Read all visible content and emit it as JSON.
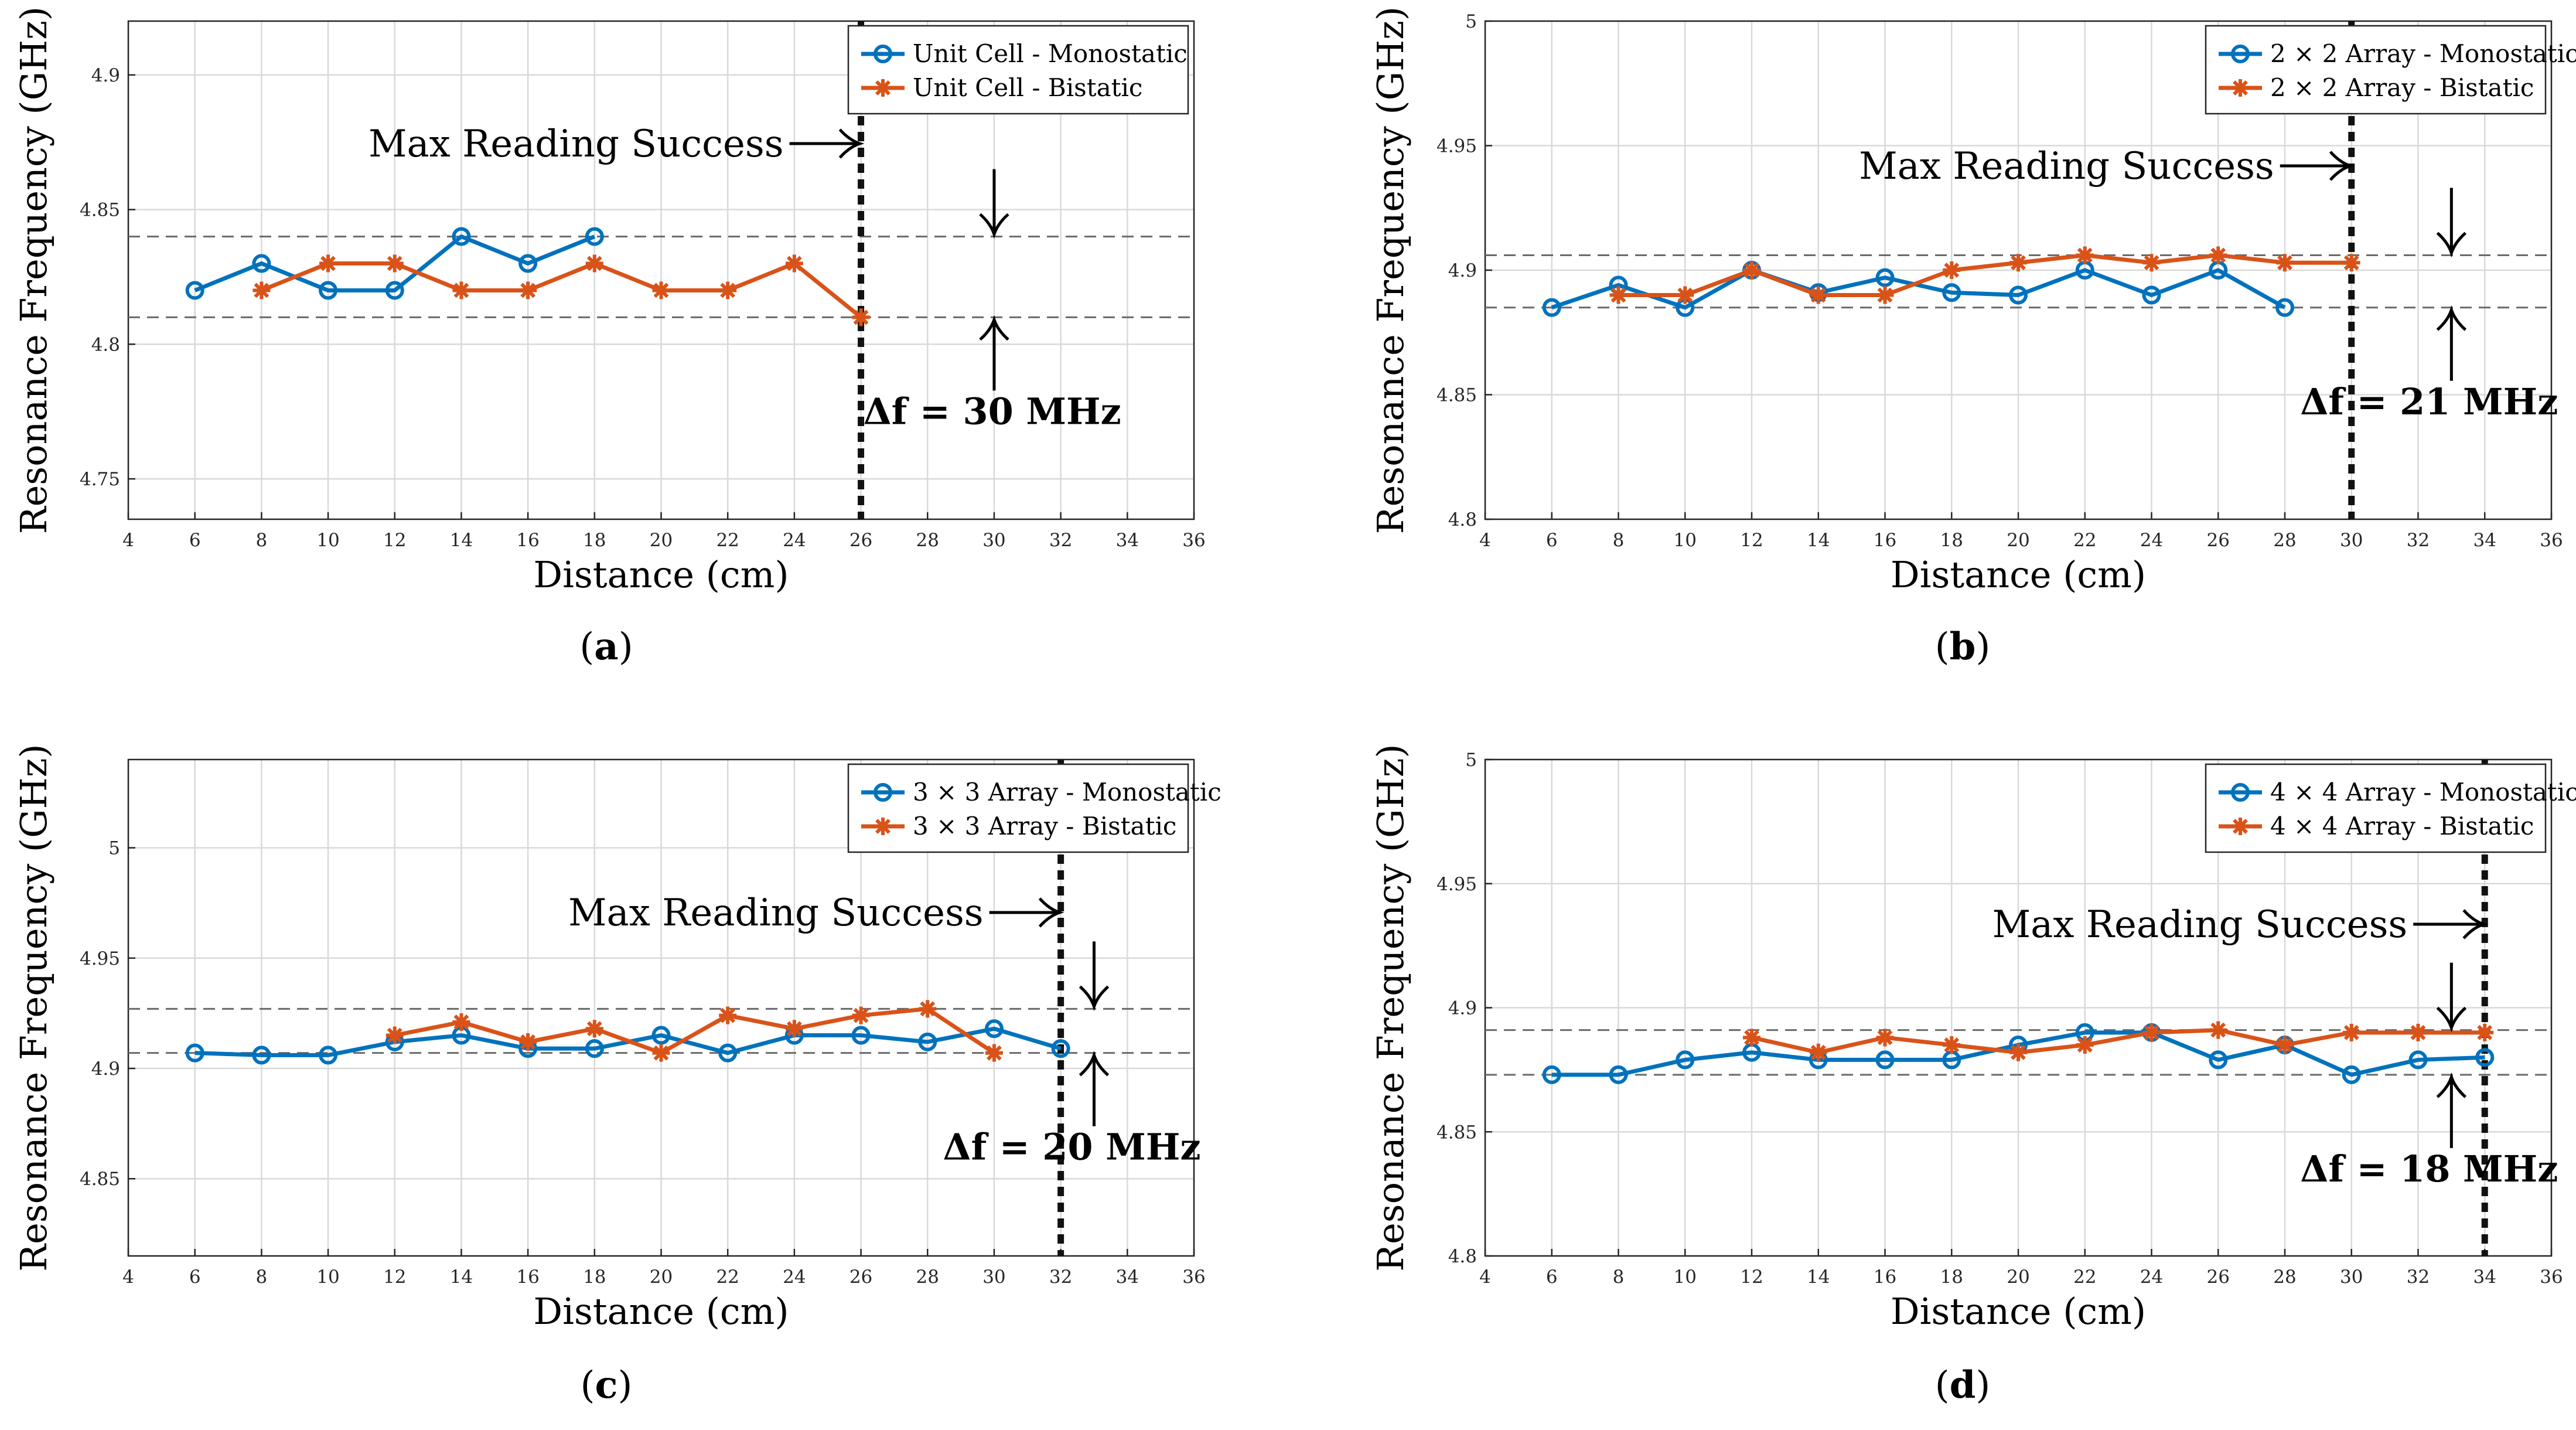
{
  "colors": {
    "monostatic": "#0072BD",
    "bistatic": "#D95319"
  },
  "chart_data": [
    {
      "id": "a",
      "type": "line",
      "caption": "a",
      "xlabel": "Distance (cm)",
      "ylabel": "Resonance Frequency (GHz)",
      "xlim": [
        4,
        36
      ],
      "ylim": [
        4.735,
        4.92
      ],
      "xticks": [
        4,
        6,
        8,
        10,
        12,
        14,
        16,
        18,
        20,
        22,
        24,
        26,
        28,
        30,
        32,
        34,
        36
      ],
      "xtick_labels": [
        "4",
        "6",
        "8",
        "10",
        "12",
        "14",
        "16",
        "18",
        "20",
        "22",
        "24",
        "26",
        "28",
        "30",
        "32",
        "34",
        "36"
      ],
      "yticks": [
        4.75,
        4.8,
        4.85,
        4.9
      ],
      "ytick_labels": [
        "4.75",
        "4.8",
        "4.85",
        "4.9"
      ],
      "grid": true,
      "legend_position": "top-right",
      "series": [
        {
          "name": "Unit Cell - Monostatic",
          "marker": "circle",
          "x": [
            6,
            8,
            10,
            12,
            14,
            16,
            18
          ],
          "y": [
            4.82,
            4.83,
            4.82,
            4.82,
            4.84,
            4.83,
            4.84
          ]
        },
        {
          "name": "Unit Cell - Bistatic",
          "marker": "star",
          "x": [
            8,
            10,
            12,
            14,
            16,
            18,
            20,
            22,
            24,
            26
          ],
          "y": [
            4.82,
            4.83,
            4.83,
            4.82,
            4.82,
            4.83,
            4.82,
            4.82,
            4.83,
            4.81
          ]
        }
      ],
      "reference_lines": [
        4.84,
        4.81
      ],
      "max_reading_x": 26,
      "max_reading_label": "Max Reading Success",
      "delta_label": "Δf = 30 MHz",
      "delta_arrow_x": 30
    },
    {
      "id": "b",
      "type": "line",
      "caption": "b",
      "xlabel": "Distance (cm)",
      "ylabel": "Resonance Frequency (GHz)",
      "xlim": [
        4,
        36
      ],
      "ylim": [
        4.8,
        5.0
      ],
      "xticks": [
        4,
        6,
        8,
        10,
        12,
        14,
        16,
        18,
        20,
        22,
        24,
        26,
        28,
        30,
        32,
        34,
        36
      ],
      "xtick_labels": [
        "4",
        "6",
        "8",
        "10",
        "12",
        "14",
        "16",
        "18",
        "20",
        "22",
        "24",
        "26",
        "28",
        "30",
        "32",
        "34",
        "36"
      ],
      "yticks": [
        4.8,
        4.85,
        4.9,
        4.95,
        5.0
      ],
      "ytick_labels": [
        "4.8",
        "4.85",
        "4.9",
        "4.95",
        "5"
      ],
      "grid": true,
      "legend_position": "top-right",
      "series": [
        {
          "name": "2 × 2 Array - Monostatic",
          "marker": "circle",
          "x": [
            6,
            8,
            10,
            12,
            14,
            16,
            18,
            20,
            22,
            24,
            26,
            28
          ],
          "y": [
            4.885,
            4.894,
            4.885,
            4.9,
            4.891,
            4.897,
            4.891,
            4.89,
            4.9,
            4.89,
            4.9,
            4.885
          ]
        },
        {
          "name": "2 × 2 Array - Bistatic",
          "marker": "star",
          "x": [
            8,
            10,
            12,
            14,
            16,
            18,
            20,
            22,
            24,
            26,
            28,
            30
          ],
          "y": [
            4.89,
            4.89,
            4.9,
            4.89,
            4.89,
            4.9,
            4.903,
            4.906,
            4.903,
            4.906,
            4.903,
            4.903
          ]
        }
      ],
      "reference_lines": [
        4.906,
        4.885
      ],
      "max_reading_x": 30,
      "max_reading_label": "Max Reading Success",
      "delta_label": "Δf = 21 MHz",
      "delta_arrow_x": 33
    },
    {
      "id": "c",
      "type": "line",
      "caption": "c",
      "xlabel": "Distance (cm)",
      "ylabel": "Resonance Frequency (GHz)",
      "xlim": [
        4,
        36
      ],
      "ylim": [
        4.815,
        5.04
      ],
      "xticks": [
        4,
        6,
        8,
        10,
        12,
        14,
        16,
        18,
        20,
        22,
        24,
        26,
        28,
        30,
        32,
        34,
        36
      ],
      "xtick_labels": [
        "4",
        "6",
        "8",
        "10",
        "12",
        "14",
        "16",
        "18",
        "20",
        "22",
        "24",
        "26",
        "28",
        "30",
        "32",
        "34",
        "36"
      ],
      "yticks": [
        4.85,
        4.9,
        4.95,
        5.0
      ],
      "ytick_labels": [
        "4.85",
        "4.9",
        "4.95",
        "5"
      ],
      "grid": true,
      "legend_position": "top-right",
      "series": [
        {
          "name": "3 × 3 Array - Monostatic",
          "marker": "circle",
          "x": [
            6,
            8,
            10,
            12,
            14,
            16,
            18,
            20,
            22,
            24,
            26,
            28,
            30,
            32
          ],
          "y": [
            4.907,
            4.906,
            4.906,
            4.912,
            4.915,
            4.909,
            4.909,
            4.915,
            4.907,
            4.915,
            4.915,
            4.912,
            4.918,
            4.909
          ]
        },
        {
          "name": "3 × 3 Array - Bistatic",
          "marker": "star",
          "x": [
            12,
            14,
            16,
            18,
            20,
            22,
            24,
            26,
            28,
            30
          ],
          "y": [
            4.915,
            4.921,
            4.912,
            4.918,
            4.907,
            4.924,
            4.918,
            4.924,
            4.927,
            4.907
          ]
        }
      ],
      "reference_lines": [
        4.927,
        4.907
      ],
      "max_reading_x": 32,
      "max_reading_label": "Max Reading Success",
      "delta_label": "Δf = 20 MHz",
      "delta_arrow_x": 33
    },
    {
      "id": "d",
      "type": "line",
      "caption": "d",
      "xlabel": "Distance (cm)",
      "ylabel": "Resonance Frequency (GHz)",
      "xlim": [
        4,
        36
      ],
      "ylim": [
        4.8,
        5.0
      ],
      "xticks": [
        4,
        6,
        8,
        10,
        12,
        14,
        16,
        18,
        20,
        22,
        24,
        26,
        28,
        30,
        32,
        34,
        36
      ],
      "xtick_labels": [
        "4",
        "6",
        "8",
        "10",
        "12",
        "14",
        "16",
        "18",
        "20",
        "22",
        "24",
        "26",
        "28",
        "30",
        "32",
        "34",
        "36"
      ],
      "yticks": [
        4.8,
        4.85,
        4.9,
        4.95,
        5.0
      ],
      "ytick_labels": [
        "4.8",
        "4.85",
        "4.9",
        "4.95",
        "5"
      ],
      "grid": true,
      "legend_position": "top-right",
      "series": [
        {
          "name": "4 × 4 Array - Monostatic",
          "marker": "circle",
          "x": [
            6,
            8,
            10,
            12,
            14,
            16,
            18,
            20,
            22,
            24,
            26,
            28,
            30,
            32,
            34
          ],
          "y": [
            4.873,
            4.873,
            4.879,
            4.882,
            4.879,
            4.879,
            4.879,
            4.885,
            4.89,
            4.89,
            4.879,
            4.885,
            4.873,
            4.879,
            4.88
          ]
        },
        {
          "name": "4 × 4 Array - Bistatic",
          "marker": "star",
          "x": [
            12,
            14,
            16,
            18,
            20,
            22,
            24,
            26,
            28,
            30,
            32,
            34
          ],
          "y": [
            4.888,
            4.882,
            4.888,
            4.885,
            4.882,
            4.885,
            4.89,
            4.891,
            4.885,
            4.89,
            4.89,
            4.89
          ]
        }
      ],
      "reference_lines": [
        4.891,
        4.873
      ],
      "max_reading_x": 34,
      "max_reading_label": "Max Reading Success",
      "delta_label": "Δf = 18 MHz",
      "delta_arrow_x": 33
    }
  ]
}
